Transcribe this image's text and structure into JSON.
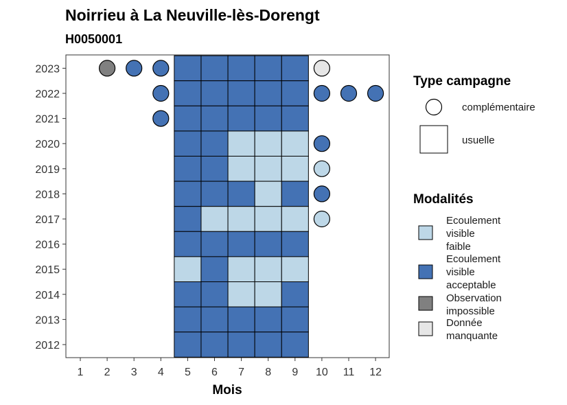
{
  "chart_data": {
    "type": "heatmap",
    "title": "Noirrieu à La Neuville-lès-Dorengt",
    "subtitle": "H0050001",
    "xlabel": "Mois",
    "x_ticks": [
      1,
      2,
      3,
      4,
      5,
      6,
      7,
      8,
      9,
      10,
      11,
      12
    ],
    "y_ticks": [
      2012,
      2013,
      2014,
      2015,
      2016,
      2017,
      2018,
      2019,
      2020,
      2021,
      2022,
      2023
    ],
    "colors": {
      "faible": "#bdd7e7",
      "acceptable": "#4472b4",
      "impossible": "#808080",
      "manquante": "#e6e6e6"
    },
    "legend_type": {
      "title": "Type campagne",
      "items": [
        {
          "key": "complementaire",
          "label": "complémentaire",
          "shape": "circle"
        },
        {
          "key": "usuelle",
          "label": "usuelle",
          "shape": "square"
        }
      ]
    },
    "legend_modalites": {
      "title": "Modalités",
      "items": [
        {
          "key": "faible",
          "lines": [
            "Ecoulement",
            "visible",
            "faible"
          ]
        },
        {
          "key": "acceptable",
          "lines": [
            "Ecoulement",
            "visible",
            "acceptable"
          ]
        },
        {
          "key": "impossible",
          "lines": [
            "Observation",
            "impossible"
          ]
        },
        {
          "key": "manquante",
          "lines": [
            "Donnée",
            "manquante"
          ]
        }
      ]
    },
    "observations": [
      {
        "year": 2023,
        "month": 2,
        "type": "complementaire",
        "modalite": "impossible"
      },
      {
        "year": 2023,
        "month": 3,
        "type": "complementaire",
        "modalite": "acceptable"
      },
      {
        "year": 2023,
        "month": 4,
        "type": "complementaire",
        "modalite": "acceptable"
      },
      {
        "year": 2023,
        "month": 5,
        "type": "usuelle",
        "modalite": "acceptable"
      },
      {
        "year": 2023,
        "month": 6,
        "type": "usuelle",
        "modalite": "acceptable"
      },
      {
        "year": 2023,
        "month": 7,
        "type": "usuelle",
        "modalite": "acceptable"
      },
      {
        "year": 2023,
        "month": 8,
        "type": "usuelle",
        "modalite": "acceptable"
      },
      {
        "year": 2023,
        "month": 9,
        "type": "usuelle",
        "modalite": "acceptable"
      },
      {
        "year": 2023,
        "month": 10,
        "type": "complementaire",
        "modalite": "manquante"
      },
      {
        "year": 2022,
        "month": 4,
        "type": "complementaire",
        "modalite": "acceptable"
      },
      {
        "year": 2022,
        "month": 5,
        "type": "usuelle",
        "modalite": "acceptable"
      },
      {
        "year": 2022,
        "month": 6,
        "type": "usuelle",
        "modalite": "acceptable"
      },
      {
        "year": 2022,
        "month": 7,
        "type": "usuelle",
        "modalite": "acceptable"
      },
      {
        "year": 2022,
        "month": 8,
        "type": "usuelle",
        "modalite": "acceptable"
      },
      {
        "year": 2022,
        "month": 9,
        "type": "usuelle",
        "modalite": "acceptable"
      },
      {
        "year": 2022,
        "month": 10,
        "type": "complementaire",
        "modalite": "acceptable"
      },
      {
        "year": 2022,
        "month": 11,
        "type": "complementaire",
        "modalite": "acceptable"
      },
      {
        "year": 2022,
        "month": 12,
        "type": "complementaire",
        "modalite": "acceptable"
      },
      {
        "year": 2021,
        "month": 4,
        "type": "complementaire",
        "modalite": "acceptable"
      },
      {
        "year": 2021,
        "month": 5,
        "type": "usuelle",
        "modalite": "acceptable"
      },
      {
        "year": 2021,
        "month": 6,
        "type": "usuelle",
        "modalite": "acceptable"
      },
      {
        "year": 2021,
        "month": 7,
        "type": "usuelle",
        "modalite": "acceptable"
      },
      {
        "year": 2021,
        "month": 8,
        "type": "usuelle",
        "modalite": "acceptable"
      },
      {
        "year": 2021,
        "month": 9,
        "type": "usuelle",
        "modalite": "acceptable"
      },
      {
        "year": 2020,
        "month": 5,
        "type": "usuelle",
        "modalite": "acceptable"
      },
      {
        "year": 2020,
        "month": 6,
        "type": "usuelle",
        "modalite": "acceptable"
      },
      {
        "year": 2020,
        "month": 7,
        "type": "usuelle",
        "modalite": "faible"
      },
      {
        "year": 2020,
        "month": 8,
        "type": "usuelle",
        "modalite": "faible"
      },
      {
        "year": 2020,
        "month": 9,
        "type": "usuelle",
        "modalite": "faible"
      },
      {
        "year": 2020,
        "month": 10,
        "type": "complementaire",
        "modalite": "acceptable"
      },
      {
        "year": 2019,
        "month": 5,
        "type": "usuelle",
        "modalite": "acceptable"
      },
      {
        "year": 2019,
        "month": 6,
        "type": "usuelle",
        "modalite": "acceptable"
      },
      {
        "year": 2019,
        "month": 7,
        "type": "usuelle",
        "modalite": "faible"
      },
      {
        "year": 2019,
        "month": 8,
        "type": "usuelle",
        "modalite": "faible"
      },
      {
        "year": 2019,
        "month": 9,
        "type": "usuelle",
        "modalite": "faible"
      },
      {
        "year": 2019,
        "month": 10,
        "type": "complementaire",
        "modalite": "faible"
      },
      {
        "year": 2018,
        "month": 5,
        "type": "usuelle",
        "modalite": "acceptable"
      },
      {
        "year": 2018,
        "month": 6,
        "type": "usuelle",
        "modalite": "acceptable"
      },
      {
        "year": 2018,
        "month": 7,
        "type": "usuelle",
        "modalite": "acceptable"
      },
      {
        "year": 2018,
        "month": 8,
        "type": "usuelle",
        "modalite": "faible"
      },
      {
        "year": 2018,
        "month": 9,
        "type": "usuelle",
        "modalite": "acceptable"
      },
      {
        "year": 2018,
        "month": 10,
        "type": "complementaire",
        "modalite": "acceptable"
      },
      {
        "year": 2017,
        "month": 5,
        "type": "usuelle",
        "modalite": "acceptable"
      },
      {
        "year": 2017,
        "month": 6,
        "type": "usuelle",
        "modalite": "faible"
      },
      {
        "year": 2017,
        "month": 7,
        "type": "usuelle",
        "modalite": "faible"
      },
      {
        "year": 2017,
        "month": 8,
        "type": "usuelle",
        "modalite": "faible"
      },
      {
        "year": 2017,
        "month": 9,
        "type": "usuelle",
        "modalite": "faible"
      },
      {
        "year": 2017,
        "month": 10,
        "type": "complementaire",
        "modalite": "faible"
      },
      {
        "year": 2016,
        "month": 5,
        "type": "usuelle",
        "modalite": "acceptable"
      },
      {
        "year": 2016,
        "month": 6,
        "type": "usuelle",
        "modalite": "acceptable"
      },
      {
        "year": 2016,
        "month": 7,
        "type": "usuelle",
        "modalite": "acceptable"
      },
      {
        "year": 2016,
        "month": 8,
        "type": "usuelle",
        "modalite": "acceptable"
      },
      {
        "year": 2016,
        "month": 9,
        "type": "usuelle",
        "modalite": "acceptable"
      },
      {
        "year": 2015,
        "month": 5,
        "type": "usuelle",
        "modalite": "faible"
      },
      {
        "year": 2015,
        "month": 6,
        "type": "usuelle",
        "modalite": "acceptable"
      },
      {
        "year": 2015,
        "month": 7,
        "type": "usuelle",
        "modalite": "faible"
      },
      {
        "year": 2015,
        "month": 8,
        "type": "usuelle",
        "modalite": "faible"
      },
      {
        "year": 2015,
        "month": 9,
        "type": "usuelle",
        "modalite": "faible"
      },
      {
        "year": 2014,
        "month": 5,
        "type": "usuelle",
        "modalite": "acceptable"
      },
      {
        "year": 2014,
        "month": 6,
        "type": "usuelle",
        "modalite": "acceptable"
      },
      {
        "year": 2014,
        "month": 7,
        "type": "usuelle",
        "modalite": "faible"
      },
      {
        "year": 2014,
        "month": 8,
        "type": "usuelle",
        "modalite": "faible"
      },
      {
        "year": 2014,
        "month": 9,
        "type": "usuelle",
        "modalite": "acceptable"
      },
      {
        "year": 2013,
        "month": 5,
        "type": "usuelle",
        "modalite": "acceptable"
      },
      {
        "year": 2013,
        "month": 6,
        "type": "usuelle",
        "modalite": "acceptable"
      },
      {
        "year": 2013,
        "month": 7,
        "type": "usuelle",
        "modalite": "acceptable"
      },
      {
        "year": 2013,
        "month": 8,
        "type": "usuelle",
        "modalite": "acceptable"
      },
      {
        "year": 2013,
        "month": 9,
        "type": "usuelle",
        "modalite": "acceptable"
      },
      {
        "year": 2012,
        "month": 5,
        "type": "usuelle",
        "modalite": "acceptable"
      },
      {
        "year": 2012,
        "month": 6,
        "type": "usuelle",
        "modalite": "acceptable"
      },
      {
        "year": 2012,
        "month": 7,
        "type": "usuelle",
        "modalite": "acceptable"
      },
      {
        "year": 2012,
        "month": 8,
        "type": "usuelle",
        "modalite": "acceptable"
      },
      {
        "year": 2012,
        "month": 9,
        "type": "usuelle",
        "modalite": "acceptable"
      }
    ]
  }
}
